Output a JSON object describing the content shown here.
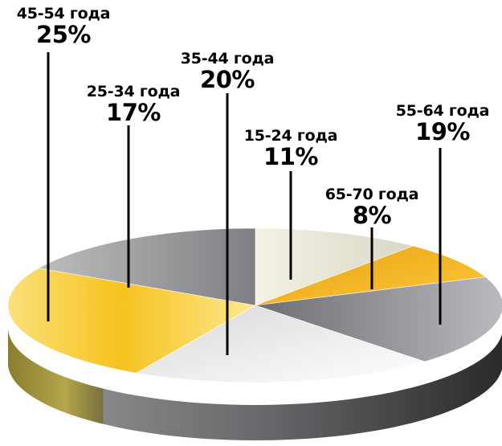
{
  "chart_data": {
    "type": "pie",
    "style": "3d",
    "categories": [
      "15-24 года",
      "65-70 года",
      "55-64 года",
      "35-44 года",
      "45-54 года",
      "25-34 года"
    ],
    "labels": [
      "15-24 года",
      "65-70 года",
      "55-64 года",
      "35-44 года",
      "45-54 года",
      "25-34 года"
    ],
    "percent_labels": [
      "11%",
      "8%",
      "19%",
      "20%",
      "25%",
      "17%"
    ],
    "values": [
      11,
      8,
      19,
      20,
      25,
      17
    ],
    "colors": [
      "#e8e6d8",
      "#f0b020",
      "#8a8a8e",
      "#e6e6e6",
      "#f7cc3a",
      "#9a9aa0"
    ],
    "title": "",
    "legend": "none"
  }
}
